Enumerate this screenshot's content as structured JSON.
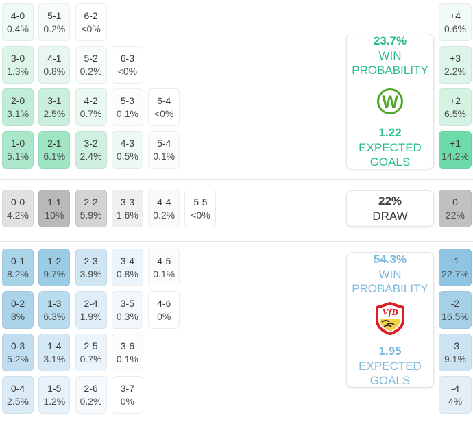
{
  "icons": {
    "home_crest": "wolfsburg-crest",
    "away_crest": "stuttgart-crest"
  },
  "sections": [
    {
      "name": "home-win",
      "box": {
        "probability": "23.7%",
        "probability_label": "WIN PROBABILITY",
        "crest_icon": "wolfsburg-crest",
        "expected_goals": "1.22",
        "expected_goals_label": "EXPECTED GOALS",
        "accent_color": "#27bc8b"
      },
      "rows": [
        [
          {
            "score": "4-0",
            "pct": "0.4%",
            "bg": "#f0faf5"
          },
          {
            "score": "5-1",
            "pct": "0.2%",
            "bg": "#f7fcfa"
          },
          {
            "score": "6-2",
            "pct": "<0%",
            "bg": "#ffffff"
          }
        ],
        [
          {
            "score": "3-0",
            "pct": "1.3%",
            "bg": "#ddf4e9"
          },
          {
            "score": "4-1",
            "pct": "0.8%",
            "bg": "#e7f7f0"
          },
          {
            "score": "5-2",
            "pct": "0.2%",
            "bg": "#f7fcfa"
          },
          {
            "score": "6-3",
            "pct": "<0%",
            "bg": "#ffffff"
          }
        ],
        [
          {
            "score": "2-0",
            "pct": "3.1%",
            "bg": "#c1edd8"
          },
          {
            "score": "3-1",
            "pct": "2.5%",
            "bg": "#caefdd"
          },
          {
            "score": "4-2",
            "pct": "0.7%",
            "bg": "#e9f8f1"
          },
          {
            "score": "5-3",
            "pct": "0.1%",
            "bg": "#fafdfc"
          },
          {
            "score": "6-4",
            "pct": "<0%",
            "bg": "#ffffff"
          }
        ],
        [
          {
            "score": "1-0",
            "pct": "5.1%",
            "bg": "#abe8cb"
          },
          {
            "score": "2-1",
            "pct": "6.1%",
            "bg": "#9de5c3"
          },
          {
            "score": "3-2",
            "pct": "2.4%",
            "bg": "#cff0e0"
          },
          {
            "score": "4-3",
            "pct": "0.5%",
            "bg": "#eef9f3"
          },
          {
            "score": "5-4",
            "pct": "0.1%",
            "bg": "#fafdfc"
          }
        ]
      ],
      "margins": [
        {
          "label": "+4",
          "pct": "0.6%",
          "bg": "#f1faf6"
        },
        {
          "label": "+3",
          "pct": "2.2%",
          "bg": "#ddf4e9"
        },
        {
          "label": "+2",
          "pct": "6.5%",
          "bg": "#d4f3e3"
        },
        {
          "label": "+1",
          "pct": "14.2%",
          "bg": "#6edcaa"
        }
      ]
    },
    {
      "name": "draw",
      "box": {
        "probability": "22%",
        "probability_label": "DRAW",
        "accent_color": "#3e3e3e"
      },
      "rows": [
        [
          {
            "score": "0-0",
            "pct": "4.2%",
            "bg": "#e1e1e1"
          },
          {
            "score": "1-1",
            "pct": "10%",
            "bg": "#b9b9b9"
          },
          {
            "score": "2-2",
            "pct": "5.9%",
            "bg": "#d3d3d3"
          },
          {
            "score": "3-3",
            "pct": "1.6%",
            "bg": "#efefef"
          },
          {
            "score": "4-4",
            "pct": "0.2%",
            "bg": "#fafafa"
          },
          {
            "score": "5-5",
            "pct": "<0%",
            "bg": "#ffffff"
          }
        ]
      ],
      "margins": [
        {
          "label": "0",
          "pct": "22%",
          "bg": "#c1c1c1"
        }
      ]
    },
    {
      "name": "away-win",
      "box": {
        "probability": "54.3%",
        "probability_label": "WIN PROBABILITY",
        "crest_icon": "stuttgart-crest",
        "expected_goals": "1.95",
        "expected_goals_label": "EXPECTED GOALS",
        "accent_color": "#7db9dc"
      },
      "rows": [
        [
          {
            "score": "0-1",
            "pct": "8.2%",
            "bg": "#a9d3e9"
          },
          {
            "score": "1-2",
            "pct": "9.7%",
            "bg": "#9bcce6"
          },
          {
            "score": "2-3",
            "pct": "3.9%",
            "bg": "#cfe5f3"
          },
          {
            "score": "3-4",
            "pct": "0.8%",
            "bg": "#ebf4fa"
          },
          {
            "score": "4-5",
            "pct": "0.1%",
            "bg": "#fafcfe"
          }
        ],
        [
          {
            "score": "0-2",
            "pct": "8%",
            "bg": "#abd4ea"
          },
          {
            "score": "1-3",
            "pct": "6.3%",
            "bg": "#b9dbee"
          },
          {
            "score": "2-4",
            "pct": "1.9%",
            "bg": "#e0eef7"
          },
          {
            "score": "3-5",
            "pct": "0.3%",
            "bg": "#f3f8fc"
          },
          {
            "score": "4-6",
            "pct": "0%",
            "bg": "#ffffff"
          }
        ],
        [
          {
            "score": "0-3",
            "pct": "5.2%",
            "bg": "#c1def0"
          },
          {
            "score": "1-4",
            "pct": "3.1%",
            "bg": "#d5e8f5"
          },
          {
            "score": "2-5",
            "pct": "0.7%",
            "bg": "#ecf5fb"
          },
          {
            "score": "3-6",
            "pct": "0.1%",
            "bg": "#fafcfe"
          }
        ],
        [
          {
            "score": "0-4",
            "pct": "2.5%",
            "bg": "#dbecf6"
          },
          {
            "score": "1-5",
            "pct": "1.2%",
            "bg": "#e8f2fa"
          },
          {
            "score": "2-6",
            "pct": "0.2%",
            "bg": "#f6fafd"
          },
          {
            "score": "3-7",
            "pct": "0%",
            "bg": "#ffffff"
          }
        ]
      ],
      "margins": [
        {
          "label": "-1",
          "pct": "22.7%",
          "bg": "#8fc4e2"
        },
        {
          "label": "-2",
          "pct": "16.5%",
          "bg": "#a5d0e8"
        },
        {
          "label": "-3",
          "pct": "9.1%",
          "bg": "#cbe3f2"
        },
        {
          "label": "-4",
          "pct": "4%",
          "bg": "#e3eef7"
        }
      ]
    }
  ]
}
